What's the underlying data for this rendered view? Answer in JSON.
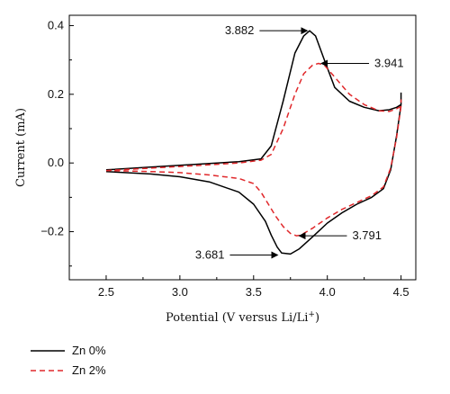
{
  "chart_data": {
    "type": "line",
    "xlabel": "Potential (V versus Li/Li",
    "xlabel_sup": "+",
    "xlabel_tail": ")",
    "ylabel": "Current (mA)",
    "xlim": [
      2.25,
      4.6
    ],
    "ylim": [
      -0.34,
      0.43
    ],
    "x_ticks": [
      2.5,
      3.0,
      3.5,
      4.0,
      4.5
    ],
    "x_tick_labels": [
      "2.5",
      "3.0",
      "3.5",
      "4.0",
      "4.5"
    ],
    "y_ticks": [
      -0.2,
      0.0,
      0.2,
      0.4
    ],
    "y_tick_labels": [
      "−0.2",
      "0.0",
      "0.2",
      "0.4"
    ],
    "grid": false,
    "legend_position": "below-left",
    "series": [
      {
        "name": "Zn 0%",
        "color": "#000000",
        "style": "solid",
        "anodic": {
          "x": [
            2.5,
            2.8,
            3.1,
            3.4,
            3.55,
            3.62,
            3.7,
            3.78,
            3.84,
            3.88,
            3.92,
            3.98,
            4.05,
            4.15,
            4.25,
            4.35,
            4.42,
            4.47,
            4.5,
            4.5
          ],
          "y": [
            -0.02,
            -0.012,
            -0.004,
            0.004,
            0.012,
            0.05,
            0.18,
            0.32,
            0.37,
            0.385,
            0.37,
            0.3,
            0.22,
            0.18,
            0.162,
            0.152,
            0.155,
            0.162,
            0.17,
            0.205
          ]
        },
        "cathodic": {
          "x": [
            4.5,
            4.47,
            4.43,
            4.38,
            4.3,
            4.2,
            4.1,
            4.0,
            3.9,
            3.81,
            3.75,
            3.69,
            3.66,
            3.62,
            3.58,
            3.5,
            3.4,
            3.2,
            3.0,
            2.8,
            2.5
          ],
          "y": [
            0.17,
            0.08,
            -0.02,
            -0.075,
            -0.1,
            -0.12,
            -0.145,
            -0.175,
            -0.215,
            -0.25,
            -0.265,
            -0.262,
            -0.245,
            -0.21,
            -0.17,
            -0.12,
            -0.085,
            -0.055,
            -0.04,
            -0.032,
            -0.025
          ]
        }
      },
      {
        "name": "Zn 2%",
        "color": "#e0282b",
        "style": "dashed",
        "anodic": {
          "x": [
            2.5,
            2.8,
            3.1,
            3.4,
            3.55,
            3.62,
            3.7,
            3.78,
            3.84,
            3.9,
            3.94,
            3.98,
            4.05,
            4.15,
            4.25,
            4.35,
            4.42,
            4.47,
            4.5,
            4.5
          ],
          "y": [
            -0.022,
            -0.015,
            -0.008,
            0.0,
            0.008,
            0.025,
            0.1,
            0.2,
            0.26,
            0.285,
            0.29,
            0.285,
            0.25,
            0.2,
            0.17,
            0.152,
            0.15,
            0.158,
            0.165,
            0.185
          ]
        },
        "cathodic": {
          "x": [
            4.5,
            4.47,
            4.43,
            4.38,
            4.3,
            4.2,
            4.1,
            4.0,
            3.9,
            3.82,
            3.79,
            3.75,
            3.7,
            3.65,
            3.6,
            3.55,
            3.5,
            3.4,
            3.2,
            3.0,
            2.8,
            2.5
          ],
          "y": [
            0.165,
            0.075,
            -0.015,
            -0.07,
            -0.095,
            -0.115,
            -0.135,
            -0.16,
            -0.19,
            -0.21,
            -0.212,
            -0.205,
            -0.185,
            -0.155,
            -0.12,
            -0.085,
            -0.06,
            -0.045,
            -0.035,
            -0.028,
            -0.025,
            -0.022
          ]
        }
      }
    ],
    "annotations": [
      {
        "label": "3.882",
        "x": 3.882,
        "y": 0.385,
        "side": "left"
      },
      {
        "label": "3.941",
        "x": 3.941,
        "y": 0.29,
        "side": "right"
      },
      {
        "label": "3.791",
        "x": 3.791,
        "y": -0.212,
        "side": "right"
      },
      {
        "label": "3.681",
        "x": 3.681,
        "y": -0.268,
        "side": "left"
      }
    ]
  }
}
